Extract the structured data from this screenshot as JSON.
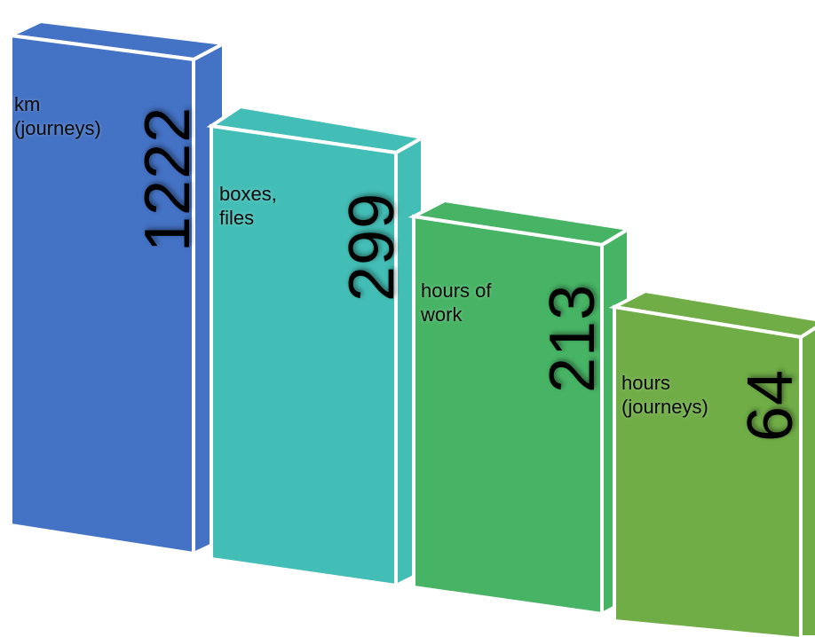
{
  "boxes": [
    {
      "label": "km\n(journeys)",
      "value": "1222",
      "color": "#4472C4"
    },
    {
      "label": "boxes,\nfiles",
      "value": "299",
      "color": "#43BEB6"
    },
    {
      "label": "hours of\nwork",
      "value": "213",
      "color": "#47B465"
    },
    {
      "label": "hours\n(journeys)",
      "value": "64",
      "color": "#70AD47"
    }
  ]
}
